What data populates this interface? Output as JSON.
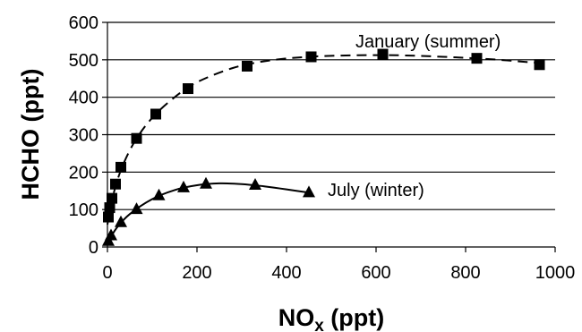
{
  "chart_data": {
    "type": "scatter",
    "xlabel": "NO",
    "xlabel_sub": "x",
    "xlabel_unit": " (ppt)",
    "ylabel": "HCHO (ppt)",
    "xlim": [
      0,
      1000
    ],
    "ylim": [
      0,
      600
    ],
    "x_ticks": [
      0,
      200,
      400,
      600,
      800,
      1000
    ],
    "y_ticks": [
      0,
      100,
      200,
      300,
      400,
      500,
      600
    ],
    "grid": "horizontal",
    "series": [
      {
        "name": "January (summer)",
        "marker": "square",
        "line": "dashed",
        "points": [
          {
            "x": 2,
            "y": 80
          },
          {
            "x": 5,
            "y": 105
          },
          {
            "x": 10,
            "y": 130
          },
          {
            "x": 18,
            "y": 168
          },
          {
            "x": 30,
            "y": 213
          },
          {
            "x": 65,
            "y": 290
          },
          {
            "x": 108,
            "y": 355
          },
          {
            "x": 180,
            "y": 423
          },
          {
            "x": 312,
            "y": 483
          },
          {
            "x": 455,
            "y": 508
          },
          {
            "x": 615,
            "y": 515
          },
          {
            "x": 825,
            "y": 504
          },
          {
            "x": 965,
            "y": 487
          }
        ],
        "fit": [
          {
            "x": 0,
            "y": 60
          },
          {
            "x": 10,
            "y": 125
          },
          {
            "x": 30,
            "y": 205
          },
          {
            "x": 60,
            "y": 280
          },
          {
            "x": 100,
            "y": 345
          },
          {
            "x": 150,
            "y": 400
          },
          {
            "x": 200,
            "y": 440
          },
          {
            "x": 280,
            "y": 478
          },
          {
            "x": 360,
            "y": 498
          },
          {
            "x": 450,
            "y": 508
          },
          {
            "x": 550,
            "y": 512
          },
          {
            "x": 650,
            "y": 512
          },
          {
            "x": 750,
            "y": 508
          },
          {
            "x": 850,
            "y": 502
          },
          {
            "x": 960,
            "y": 492
          }
        ]
      },
      {
        "name": "July (winter)",
        "marker": "triangle",
        "line": "solid",
        "points": [
          {
            "x": 2,
            "y": 15
          },
          {
            "x": 8,
            "y": 30
          },
          {
            "x": 30,
            "y": 65
          },
          {
            "x": 65,
            "y": 100
          },
          {
            "x": 115,
            "y": 137
          },
          {
            "x": 170,
            "y": 158
          },
          {
            "x": 220,
            "y": 168
          },
          {
            "x": 330,
            "y": 165
          },
          {
            "x": 450,
            "y": 145
          }
        ],
        "fit": [
          {
            "x": 0,
            "y": 10
          },
          {
            "x": 20,
            "y": 50
          },
          {
            "x": 50,
            "y": 88
          },
          {
            "x": 100,
            "y": 128
          },
          {
            "x": 150,
            "y": 152
          },
          {
            "x": 200,
            "y": 165
          },
          {
            "x": 250,
            "y": 170
          },
          {
            "x": 300,
            "y": 168
          },
          {
            "x": 350,
            "y": 162
          },
          {
            "x": 400,
            "y": 154
          },
          {
            "x": 450,
            "y": 145
          }
        ]
      }
    ]
  }
}
